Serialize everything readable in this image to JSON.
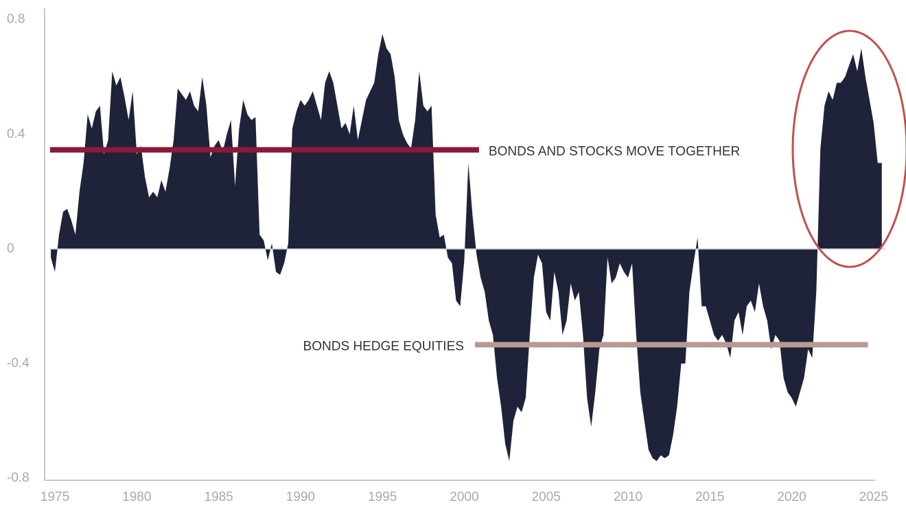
{
  "chart_data": {
    "type": "area",
    "x": [
      1974.75,
      1975,
      1975.25,
      1975.5,
      1975.75,
      1976,
      1976.25,
      1976.5,
      1976.75,
      1977,
      1977.25,
      1977.5,
      1977.75,
      1978,
      1978.25,
      1978.5,
      1978.75,
      1979,
      1979.25,
      1979.5,
      1979.75,
      1980,
      1980.25,
      1980.5,
      1980.75,
      1981,
      1981.25,
      1981.5,
      1981.75,
      1982,
      1982.25,
      1982.5,
      1982.75,
      1983,
      1983.25,
      1983.5,
      1983.75,
      1984,
      1984.25,
      1984.5,
      1984.75,
      1985,
      1985.25,
      1985.5,
      1985.75,
      1986,
      1986.25,
      1986.5,
      1986.75,
      1987,
      1987.25,
      1987.5,
      1987.75,
      1988,
      1988.25,
      1988.5,
      1988.75,
      1989,
      1989.25,
      1989.5,
      1989.75,
      1990,
      1990.25,
      1990.5,
      1990.75,
      1991,
      1991.25,
      1991.5,
      1991.75,
      1992,
      1992.25,
      1992.5,
      1992.75,
      1993,
      1993.25,
      1993.5,
      1993.75,
      1994,
      1994.25,
      1994.5,
      1994.75,
      1995,
      1995.25,
      1995.5,
      1995.75,
      1996,
      1996.25,
      1996.5,
      1996.75,
      1997,
      1997.25,
      1997.5,
      1997.75,
      1998,
      1998.25,
      1998.5,
      1998.75,
      1999,
      1999.25,
      1999.5,
      1999.75,
      2000,
      2000.25,
      2000.5,
      2000.75,
      2001,
      2001.25,
      2001.5,
      2001.75,
      2002,
      2002.25,
      2002.5,
      2002.75,
      2003,
      2003.25,
      2003.5,
      2003.75,
      2004,
      2004.25,
      2004.5,
      2004.75,
      2005,
      2005.25,
      2005.5,
      2005.75,
      2006,
      2006.25,
      2006.5,
      2006.75,
      2007,
      2007.25,
      2007.5,
      2007.75,
      2008,
      2008.25,
      2008.5,
      2008.75,
      2009,
      2009.25,
      2009.5,
      2009.75,
      2010,
      2010.25,
      2010.5,
      2010.75,
      2011,
      2011.25,
      2011.5,
      2011.75,
      2012,
      2012.25,
      2012.5,
      2012.75,
      2013,
      2013.25,
      2013.5,
      2013.75,
      2014,
      2014.25,
      2014.5,
      2014.75,
      2015,
      2015.25,
      2015.5,
      2015.75,
      2016,
      2016.25,
      2016.5,
      2016.75,
      2017,
      2017.25,
      2017.5,
      2017.75,
      2018,
      2018.25,
      2018.5,
      2018.75,
      2019,
      2019.25,
      2019.5,
      2019.75,
      2020,
      2020.25,
      2020.5,
      2020.75,
      2021,
      2021.25,
      2021.5,
      2021.75,
      2022,
      2022.25,
      2022.5,
      2022.75,
      2023,
      2023.25,
      2023.5,
      2023.75,
      2024,
      2024.25,
      2024.5,
      2024.75,
      2025,
      2025.25,
      2025.5
    ],
    "series": [
      {
        "color": "#1f2339",
        "values": [
          -0.03,
          -0.08,
          0.05,
          0.13,
          0.14,
          0.1,
          0.05,
          0.2,
          0.3,
          0.47,
          0.42,
          0.48,
          0.5,
          0.33,
          0.38,
          0.62,
          0.57,
          0.6,
          0.53,
          0.45,
          0.55,
          0.33,
          0.36,
          0.25,
          0.18,
          0.2,
          0.18,
          0.24,
          0.2,
          0.28,
          0.38,
          0.56,
          0.54,
          0.52,
          0.55,
          0.5,
          0.48,
          0.6,
          0.5,
          0.32,
          0.36,
          0.38,
          0.34,
          0.4,
          0.45,
          0.22,
          0.42,
          0.52,
          0.47,
          0.45,
          0.46,
          0.05,
          0.03,
          -0.04,
          0.02,
          -0.08,
          -0.09,
          -0.05,
          0.02,
          0.42,
          0.48,
          0.52,
          0.5,
          0.52,
          0.55,
          0.5,
          0.45,
          0.58,
          0.62,
          0.58,
          0.5,
          0.42,
          0.44,
          0.4,
          0.5,
          0.38,
          0.45,
          0.52,
          0.55,
          0.58,
          0.68,
          0.75,
          0.7,
          0.68,
          0.6,
          0.45,
          0.4,
          0.37,
          0.35,
          0.45,
          0.62,
          0.5,
          0.48,
          0.5,
          0.12,
          0.04,
          0.05,
          -0.03,
          -0.05,
          -0.18,
          -0.2,
          -0.04,
          0.3,
          0.12,
          -0.02,
          -0.1,
          -0.15,
          -0.25,
          -0.3,
          -0.45,
          -0.55,
          -0.68,
          -0.74,
          -0.6,
          -0.55,
          -0.57,
          -0.52,
          -0.3,
          -0.1,
          -0.02,
          -0.05,
          -0.22,
          -0.25,
          -0.08,
          -0.15,
          -0.3,
          -0.25,
          -0.12,
          -0.18,
          -0.15,
          -0.3,
          -0.52,
          -0.62,
          -0.5,
          -0.35,
          -0.3,
          -0.03,
          -0.12,
          -0.1,
          -0.05,
          -0.08,
          -0.1,
          -0.05,
          -0.3,
          -0.5,
          -0.6,
          -0.7,
          -0.73,
          -0.74,
          -0.72,
          -0.73,
          -0.72,
          -0.65,
          -0.55,
          -0.4,
          -0.4,
          -0.15,
          -0.05,
          0.04,
          -0.2,
          -0.2,
          -0.25,
          -0.3,
          -0.32,
          -0.3,
          -0.33,
          -0.38,
          -0.25,
          -0.22,
          -0.3,
          -0.2,
          -0.18,
          -0.22,
          -0.12,
          -0.2,
          -0.25,
          -0.35,
          -0.3,
          -0.32,
          -0.45,
          -0.5,
          -0.52,
          -0.55,
          -0.5,
          -0.45,
          -0.35,
          -0.38,
          -0.15,
          0.35,
          0.5,
          0.55,
          0.52,
          0.58,
          0.58,
          0.6,
          0.64,
          0.68,
          0.62,
          0.7,
          0.6,
          0.52,
          0.44,
          0.3,
          0.3
        ]
      }
    ],
    "xlim": [
      1974.37,
      2025.72
    ],
    "xticks": [
      1975,
      1980,
      1985,
      1990,
      1995,
      2000,
      2005,
      2010,
      2015,
      2020,
      2025
    ],
    "ylim": [
      -0.8,
      0.84
    ],
    "yticks": [
      0.8,
      0.4,
      0,
      -0.4,
      -0.8
    ],
    "annotations": [
      {
        "text": "BONDS AND STOCKS MOVE TOGETHER",
        "y": 0.346,
        "x": [
          1974.7,
          2000.9
        ],
        "color": "#8b1a3a",
        "side": "right"
      },
      {
        "text": "BONDS HEDGE EQUITIES",
        "y": -0.334,
        "x": [
          2000.65,
          2024.65
        ],
        "color": "#b89a93",
        "side": "left"
      }
    ]
  }
}
